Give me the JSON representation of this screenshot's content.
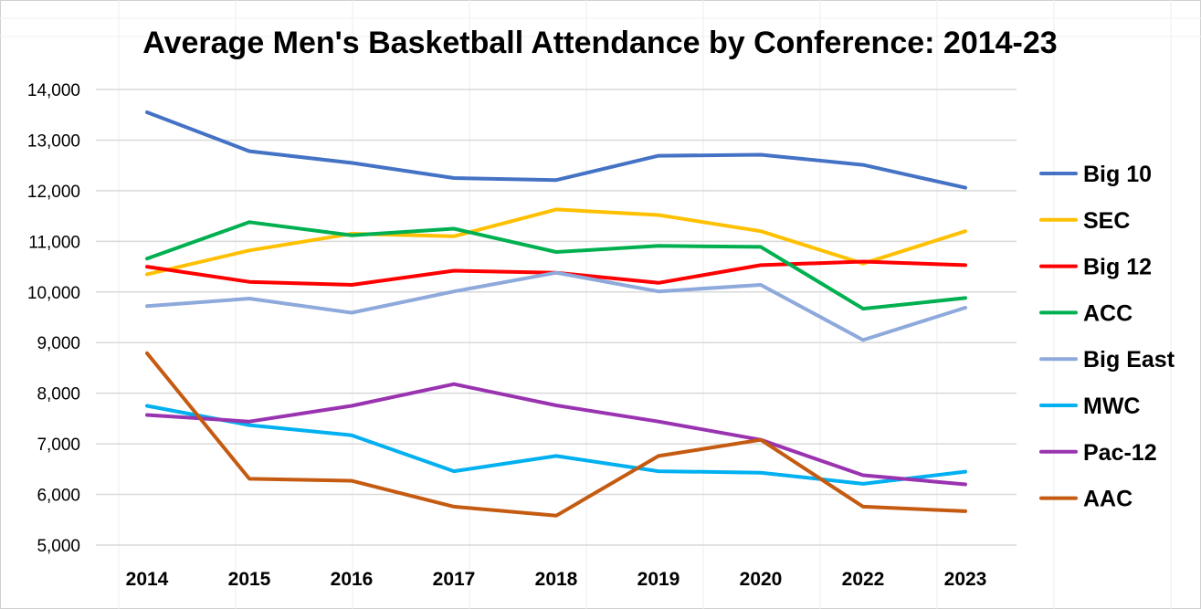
{
  "chart_data": {
    "type": "line",
    "title": "Average Men's Basketball Attendance by Conference: 2014-23",
    "xlabel": "",
    "ylabel": "",
    "categories": [
      "2014",
      "2015",
      "2016",
      "2017",
      "2018",
      "2019",
      "2020",
      "2022",
      "2023"
    ],
    "ylim": [
      5000,
      14000
    ],
    "yticks": [
      "5,000",
      "6,000",
      "7,000",
      "8,000",
      "9,000",
      "10,000",
      "11,000",
      "12,000",
      "13,000",
      "14,000"
    ],
    "ytick_values": [
      5000,
      6000,
      7000,
      8000,
      9000,
      10000,
      11000,
      12000,
      13000,
      14000
    ],
    "grid": true,
    "legend_position": "right",
    "series": [
      {
        "name": "Big 10",
        "color": "#4472C4",
        "values": [
          13550,
          12780,
          12550,
          12250,
          12210,
          12690,
          12710,
          12510,
          12060
        ]
      },
      {
        "name": "SEC",
        "color": "#FFC000",
        "values": [
          10350,
          10820,
          11150,
          11100,
          11630,
          11520,
          11200,
          10560,
          11200
        ]
      },
      {
        "name": "Big 12",
        "color": "#FF0000",
        "values": [
          10500,
          10200,
          10140,
          10420,
          10380,
          10180,
          10530,
          10600,
          10530
        ]
      },
      {
        "name": "ACC",
        "color": "#00B050",
        "values": [
          10660,
          11380,
          11120,
          11250,
          10790,
          10910,
          10890,
          9670,
          9880
        ]
      },
      {
        "name": "Big East",
        "color": "#8EA9DB",
        "values": [
          9720,
          9870,
          9590,
          10010,
          10380,
          10010,
          10140,
          9050,
          9690
        ]
      },
      {
        "name": "MWC",
        "color": "#00B0F0",
        "values": [
          7750,
          7370,
          7170,
          6460,
          6760,
          6460,
          6430,
          6210,
          6450
        ]
      },
      {
        "name": "Pac-12",
        "color": "#9933B0",
        "values": [
          7570,
          7440,
          7750,
          8180,
          7760,
          7440,
          7080,
          6380,
          6200
        ]
      },
      {
        "name": "AAC",
        "color": "#C55A11",
        "values": [
          8790,
          6310,
          6270,
          5760,
          5580,
          6760,
          7080,
          5760,
          5670
        ]
      }
    ]
  }
}
